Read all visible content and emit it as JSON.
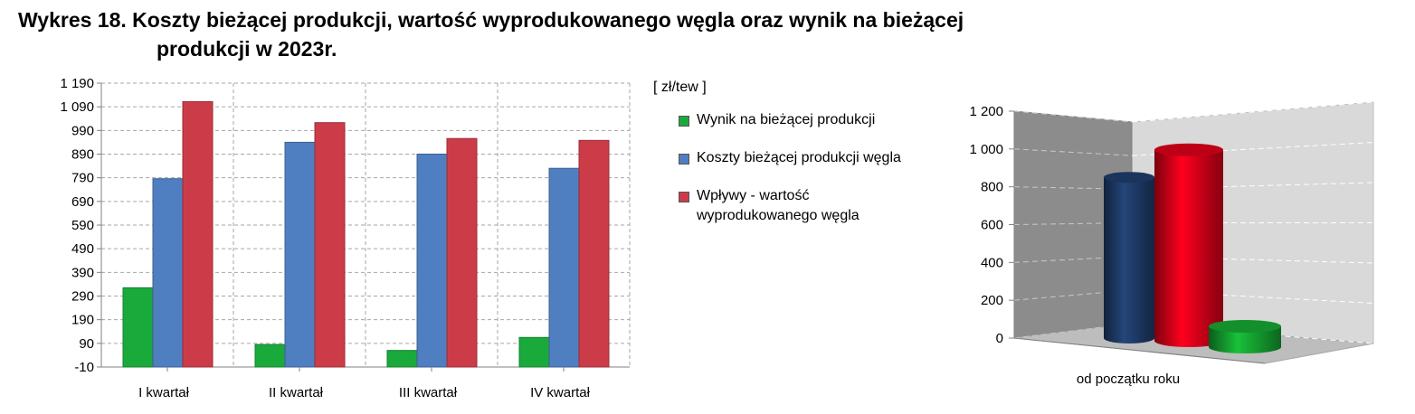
{
  "title_line1": "Wykres 18. Koszty bieżącej produkcji, wartość wyprodukowanego węgla oraz wynik na bieżącej",
  "title_line2": "produkcji w 2023r.",
  "unit": "[ zł/tew ]",
  "legend": [
    {
      "label": "Wynik na bieżącej produkcji",
      "color": "#1aaa3c"
    },
    {
      "label": "Koszty bieżącej produkcji węgla",
      "color": "#4f7fc0"
    },
    {
      "label": "Wpływy - wartość wyprodukowanego węgla",
      "color": "#cc3c48"
    }
  ],
  "chart_data": [
    {
      "type": "bar",
      "categories": [
        "I kwartał",
        "II kwartał",
        "III kwartał",
        "IV kwartał"
      ],
      "series": [
        {
          "name": "Wynik na bieżącej produkcji",
          "values": [
            325,
            85,
            60,
            115
          ],
          "color": "#1aaa3c"
        },
        {
          "name": "Koszty bieżącej produkcji węgla",
          "values": [
            786,
            940,
            890,
            830
          ],
          "color": "#4f7fc0"
        },
        {
          "name": "Wpływy - wartość wyprodukowanego węgla",
          "values": [
            1112,
            1023,
            956,
            948
          ],
          "color": "#cc3c48"
        }
      ],
      "yticks": [
        "-10",
        "90",
        "190",
        "290",
        "390",
        "490",
        "590",
        "690",
        "790",
        "890",
        "990",
        "1 090",
        "1 190"
      ],
      "ylim": [
        -10,
        1190
      ],
      "grid": true
    },
    {
      "type": "bar",
      "style": "3d-cylinder",
      "categories": [
        "od początku roku"
      ],
      "series": [
        {
          "name": "Koszty bieżącej produkcji węgla",
          "values": [
            850
          ],
          "color": "#1f3d6b"
        },
        {
          "name": "Wpływy - wartość wyprodukowanego węgla",
          "values": [
            1010
          ],
          "color": "#e0001a"
        },
        {
          "name": "Wynik na bieżącej produkcji",
          "values": [
            110
          ],
          "color": "#16a832"
        }
      ],
      "yticks": [
        "0",
        "200",
        "400",
        "600",
        "800",
        "1 000",
        "1 200"
      ],
      "ylim": [
        0,
        1200
      ],
      "grid": true
    }
  ]
}
